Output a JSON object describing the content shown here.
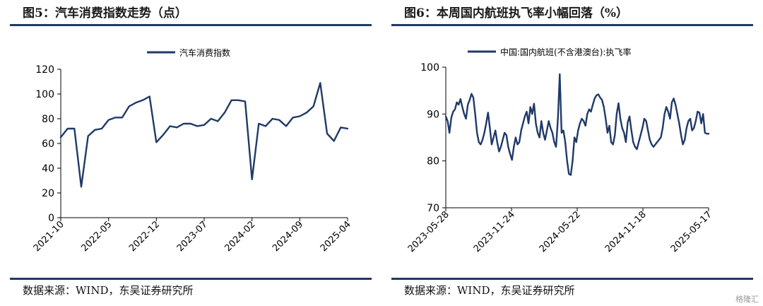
{
  "panels": [
    {
      "title": "图5：汽车消费指数走势（点）",
      "source": "数据来源：WIND，东吴证券研究所",
      "chart_data": {
        "type": "line",
        "title": "图5：汽车消费指数走势（点）",
        "xlabel": "",
        "ylabel": "",
        "ylim": [
          0,
          120
        ],
        "yticks": [
          0,
          20,
          40,
          60,
          80,
          100,
          120
        ],
        "x_axis_labels": [
          "2021-10",
          "2022-05",
          "2022-12",
          "2023-07",
          "2024-02",
          "2024-09",
          "2025-04"
        ],
        "legend": "top-center",
        "grid": false,
        "color": "#1f3a68",
        "series": [
          {
            "name": "汽车消费指数",
            "x": [
              "2021-10",
              "2021-11",
              "2021-12",
              "2022-01",
              "2022-02",
              "2022-03",
              "2022-04",
              "2022-05",
              "2022-06",
              "2022-07",
              "2022-08",
              "2022-09",
              "2022-10",
              "2022-11",
              "2022-12",
              "2023-01",
              "2023-02",
              "2023-03",
              "2023-04",
              "2023-05",
              "2023-06",
              "2023-07",
              "2023-08",
              "2023-09",
              "2023-10",
              "2023-11",
              "2023-12",
              "2024-01",
              "2024-02",
              "2024-03",
              "2024-04",
              "2024-05",
              "2024-06",
              "2024-07",
              "2024-08",
              "2024-09",
              "2024-10",
              "2024-11",
              "2024-12",
              "2025-01",
              "2025-02",
              "2025-03",
              "2025-04"
            ],
            "values": [
              65,
              72,
              72,
              25,
              66,
              71,
              72,
              79,
              81,
              81,
              90,
              93,
              95,
              98,
              61,
              67,
              74,
              73,
              76,
              76,
              74,
              75,
              80,
              78,
              85,
              95,
              95,
              94,
              31,
              76,
              74,
              80,
              79,
              74,
              81,
              82,
              85,
              90,
              109,
              68,
              62,
              73,
              72
            ]
          }
        ]
      }
    },
    {
      "title": "图6：本周国内航班执飞率小幅回落（%）",
      "source": "数据来源：WIND，东吴证券研究所",
      "chart_data": {
        "type": "line",
        "title": "图6：本周国内航班执飞率小幅回落（%）",
        "xlabel": "",
        "ylabel": "",
        "ylim": [
          70,
          100
        ],
        "yticks": [
          70,
          80,
          90,
          100
        ],
        "x_axis_labels": [
          "2023-05-28",
          "2023-11-24",
          "2024-05-22",
          "2024-11-18",
          "2025-05-17"
        ],
        "legend": "top-center",
        "grid": false,
        "color": "#1f3a68",
        "series": [
          {
            "name": "中国:国内航班(不含港澳台):执飞率",
            "values": [
              89.5,
              88.5,
              86.0,
              89.2,
              90.5,
              91.0,
              92.5,
              92.0,
              93.2,
              91.5,
              90.0,
              89.0,
              92.0,
              93.0,
              94.3,
              93.5,
              90.0,
              86.0,
              84.0,
              83.5,
              84.5,
              86.0,
              88.0,
              90.3,
              87.0,
              83.5,
              85.0,
              86.5,
              84.0,
              82.0,
              83.0,
              84.5,
              86.0,
              85.5,
              83.0,
              81.5,
              80.2,
              83.0,
              85.0,
              83.5,
              84.0,
              86.5,
              88.0,
              89.5,
              90.5,
              88.0,
              91.5,
              90.0,
              92.2,
              88.0,
              86.0,
              85.0,
              88.5,
              86.0,
              84.5,
              86.5,
              88.5,
              87.0,
              86.0,
              84.0,
              83.0,
              89.0,
              98.5,
              86.0,
              86.5,
              84.0,
              80.0,
              77.2,
              77.0,
              80.0,
              85.0,
              84.0,
              86.5,
              88.0,
              89.0,
              88.5,
              87.5,
              90.0,
              91.0,
              90.5,
              92.0,
              93.3,
              94.0,
              94.2,
              93.5,
              93.0,
              91.5,
              89.0,
              86.0,
              87.5,
              84.0,
              83.5,
              85.5,
              90.0,
              92.3,
              89.0,
              87.0,
              86.0,
              84.0,
              88.2,
              89.5,
              86.5,
              84.0,
              83.0,
              82.5,
              84.0,
              85.5,
              87.0,
              89.0,
              88.5,
              86.5,
              84.5,
              83.5,
              83.0,
              83.5,
              84.0,
              84.5,
              85.0,
              87.0,
              90.0,
              91.5,
              90.5,
              89.0,
              92.5,
              93.3,
              92.0,
              90.0,
              88.0,
              85.5,
              83.5,
              84.5,
              87.0,
              88.5,
              89.0,
              86.5,
              87.0,
              88.5,
              90.5,
              90.3,
              88.0,
              90.0,
              86.0,
              85.8,
              85.8
            ]
          }
        ]
      }
    }
  ],
  "watermark": "格隆汇"
}
